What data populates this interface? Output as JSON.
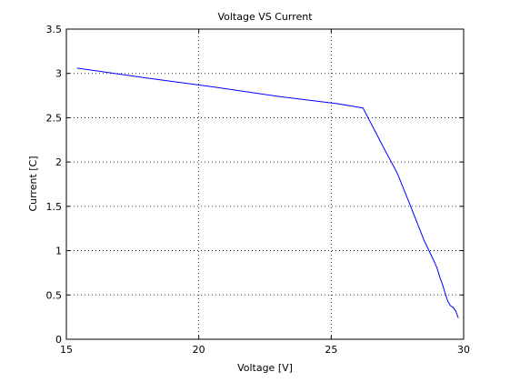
{
  "chart_data": {
    "type": "line",
    "title": "Voltage VS Current",
    "xlabel": "Voltage [V]",
    "ylabel": "Current [C]",
    "xlim": [
      15,
      30
    ],
    "ylim": [
      0,
      3.5
    ],
    "xticks": [
      15,
      20,
      25,
      30
    ],
    "yticks": [
      0,
      0.5,
      1,
      1.5,
      2,
      2.5,
      3,
      3.5
    ],
    "grid": true,
    "series": [
      {
        "color": "#0000ff",
        "x": [
          15.4,
          18.0,
          20.5,
          23.0,
          25.2,
          26.2,
          27.0,
          27.5,
          28.0,
          28.5,
          28.9,
          29.0,
          29.1,
          29.2,
          29.3,
          29.4,
          29.5,
          29.6,
          29.7,
          29.8
        ],
        "y": [
          3.06,
          2.95,
          2.85,
          2.74,
          2.66,
          2.61,
          2.15,
          1.87,
          1.5,
          1.12,
          0.87,
          0.8,
          0.7,
          0.62,
          0.52,
          0.43,
          0.38,
          0.36,
          0.32,
          0.24
        ]
      }
    ]
  }
}
